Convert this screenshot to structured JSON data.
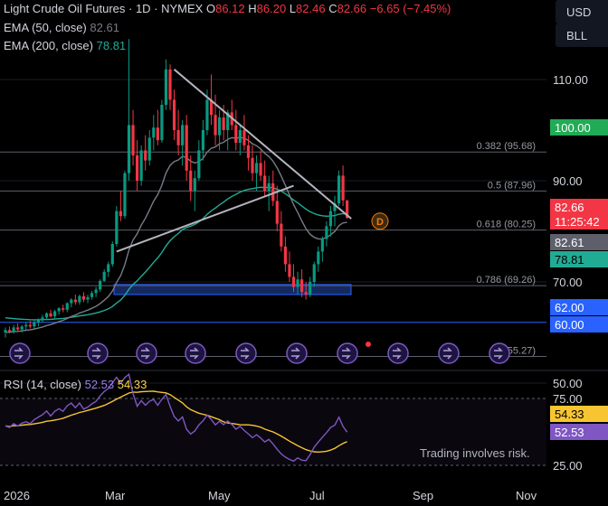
{
  "header": {
    "title": "Light Crude Oil Futures · 1D · NYMEX",
    "ohlc": [
      {
        "k": "O",
        "v": "86.12"
      },
      {
        "k": "H",
        "v": "86.20"
      },
      {
        "k": "L",
        "v": "82.46"
      },
      {
        "k": "C",
        "v": "82.66"
      }
    ],
    "change": "−6.65 (−7.45%)",
    "ema50_label": "EMA (50, close)",
    "ema50_value": "82.61",
    "ema200_label": "EMA (200, close)",
    "ema200_value": "78.81"
  },
  "side_buttons": {
    "currency": "USD",
    "unit": "BLL"
  },
  "colors": {
    "up": "#089981",
    "down": "#f23645",
    "ema50": "#787b86",
    "ema200": "#22ab94",
    "rsi": "#7e57c2",
    "rsi_ma": "#f7c531",
    "trendline": "#b2b5be",
    "box": "#1e3a8a",
    "green_label": "#22ab56",
    "red_label": "#f23645",
    "blue_label": "#2962ff"
  },
  "chart_data": {
    "type": "candlestick",
    "x_axis": {
      "labels": [
        "2026",
        "Mar",
        "May",
        "Jul",
        "Sep",
        "Nov"
      ]
    },
    "y_axis": {
      "ticks": [
        "110.00",
        "90.00",
        "70.00",
        "50.00"
      ],
      "range": [
        50,
        120
      ]
    },
    "price_labels": [
      {
        "text": "100.00",
        "value": 100.0,
        "color": "green"
      },
      {
        "text": "82.66",
        "value": 82.66,
        "color": "red",
        "subtext": "11:25:42"
      },
      {
        "text": "82.61",
        "value": 82.61,
        "color": "grey"
      },
      {
        "text": "78.81",
        "value": 78.81,
        "color": "cyan"
      },
      {
        "text": "62.00",
        "value": 62.0,
        "color": "blue"
      },
      {
        "text": "60.00",
        "value": 60.0,
        "color": "blue"
      }
    ],
    "fibonacci": [
      {
        "label": "0.382 (95.68)",
        "value": 95.68
      },
      {
        "label": "0.5 (87.96)",
        "value": 87.96
      },
      {
        "label": "0.618 (80.25)",
        "value": 80.25
      },
      {
        "label": "0.786 (69.26)",
        "value": 69.26
      },
      {
        "label": "1 (55.27)",
        "value": 55.27
      }
    ],
    "dividend_marker": "D",
    "candles": [
      [
        60.0,
        61.0,
        59.0,
        60.5
      ],
      [
        60.5,
        61.2,
        59.8,
        60.2
      ],
      [
        60.2,
        61.5,
        59.8,
        61.0
      ],
      [
        61.0,
        61.8,
        60.2,
        60.6
      ],
      [
        60.6,
        61.5,
        60.0,
        61.2
      ],
      [
        61.2,
        62.0,
        60.5,
        61.5
      ],
      [
        61.5,
        62.3,
        60.8,
        61.2
      ],
      [
        61.2,
        62.5,
        60.8,
        62.0
      ],
      [
        62.0,
        62.8,
        61.2,
        62.5
      ],
      [
        62.5,
        63.5,
        62.0,
        63.0
      ],
      [
        63.0,
        64.0,
        62.5,
        63.8
      ],
      [
        63.8,
        64.5,
        63.0,
        63.2
      ],
      [
        63.2,
        64.5,
        62.8,
        64.2
      ],
      [
        64.2,
        65.0,
        63.5,
        64.8
      ],
      [
        64.8,
        65.5,
        64.0,
        64.5
      ],
      [
        64.5,
        66.0,
        64.0,
        65.8
      ],
      [
        65.8,
        66.8,
        65.0,
        66.5
      ],
      [
        66.5,
        67.5,
        65.5,
        66.0
      ],
      [
        66.0,
        67.5,
        65.5,
        67.2
      ],
      [
        67.2,
        68.0,
        66.0,
        66.5
      ],
      [
        66.5,
        67.5,
        65.8,
        67.0
      ],
      [
        67.0,
        68.2,
        66.5,
        67.8
      ],
      [
        67.8,
        69.0,
        67.0,
        68.5
      ],
      [
        68.5,
        70.5,
        68.0,
        70.2
      ],
      [
        70.2,
        72.5,
        70.0,
        72.0
      ],
      [
        72.0,
        74.0,
        71.0,
        73.5
      ],
      [
        73.5,
        78.0,
        73.0,
        77.5
      ],
      [
        77.5,
        85.0,
        77.0,
        84.0
      ],
      [
        84.0,
        88.0,
        82.0,
        83.0
      ],
      [
        83.0,
        92.0,
        82.5,
        91.5
      ],
      [
        91.5,
        118.0,
        90.0,
        101.0
      ],
      [
        101.0,
        104.0,
        93.0,
        95.0
      ],
      [
        95.0,
        98.0,
        88.0,
        90.0
      ],
      [
        90.0,
        97.0,
        89.0,
        96.0
      ],
      [
        96.0,
        99.0,
        92.0,
        94.0
      ],
      [
        94.0,
        100.0,
        93.0,
        98.5
      ],
      [
        98.5,
        103.0,
        96.0,
        100.5
      ],
      [
        100.5,
        104.0,
        97.0,
        98.0
      ],
      [
        98.0,
        106.0,
        97.5,
        105.0
      ],
      [
        105.0,
        114.0,
        104.0,
        112.0
      ],
      [
        112.0,
        113.0,
        104.0,
        106.0
      ],
      [
        106.0,
        108.0,
        98.0,
        100.0
      ],
      [
        100.0,
        104.0,
        95.0,
        97.0
      ],
      [
        97.0,
        102.0,
        93.0,
        101.0
      ],
      [
        101.0,
        103.0,
        90.0,
        92.0
      ],
      [
        92.0,
        95.0,
        86.0,
        88.0
      ],
      [
        88.0,
        92.0,
        84.0,
        90.5
      ],
      [
        90.5,
        98.0,
        90.0,
        96.0
      ],
      [
        96.0,
        102.0,
        94.0,
        100.0
      ],
      [
        100.0,
        108.0,
        99.0,
        106.0
      ],
      [
        106.0,
        111.0,
        101.0,
        103.0
      ],
      [
        103.0,
        107.0,
        97.0,
        99.0
      ],
      [
        99.0,
        104.0,
        96.0,
        102.5
      ],
      [
        102.5,
        105.0,
        98.0,
        100.0
      ],
      [
        100.0,
        104.0,
        96.0,
        103.5
      ],
      [
        103.5,
        106.0,
        100.0,
        101.0
      ],
      [
        101.0,
        104.0,
        96.0,
        97.5
      ],
      [
        97.5,
        101.0,
        95.0,
        100.0
      ],
      [
        100.0,
        103.0,
        96.0,
        97.0
      ],
      [
        97.0,
        99.0,
        92.0,
        94.5
      ],
      [
        94.5,
        97.0,
        90.0,
        91.5
      ],
      [
        91.5,
        95.0,
        88.0,
        93.5
      ],
      [
        93.5,
        96.0,
        90.0,
        91.0
      ],
      [
        91.0,
        94.0,
        87.0,
        88.0
      ],
      [
        88.0,
        91.0,
        84.0,
        89.5
      ],
      [
        89.5,
        92.0,
        85.0,
        86.0
      ],
      [
        86.0,
        89.0,
        80.0,
        81.5
      ],
      [
        81.5,
        84.0,
        76.0,
        77.0
      ],
      [
        77.0,
        79.0,
        72.0,
        73.5
      ],
      [
        73.5,
        76.0,
        70.0,
        71.0
      ],
      [
        71.0,
        73.5,
        68.0,
        69.0
      ],
      [
        69.0,
        72.0,
        67.5,
        70.5
      ],
      [
        70.5,
        72.5,
        67.0,
        68.0
      ],
      [
        68.0,
        70.0,
        66.5,
        67.5
      ],
      [
        67.5,
        71.0,
        67.0,
        70.0
      ],
      [
        70.0,
        74.0,
        69.0,
        73.5
      ],
      [
        73.5,
        77.0,
        72.0,
        76.0
      ],
      [
        76.0,
        79.0,
        74.0,
        78.5
      ],
      [
        78.5,
        82.0,
        77.0,
        81.0
      ],
      [
        81.0,
        85.0,
        79.0,
        84.0
      ],
      [
        84.0,
        87.0,
        81.0,
        85.5
      ],
      [
        85.5,
        92.0,
        85.0,
        91.0
      ],
      [
        91.0,
        93.0,
        85.0,
        86.12
      ],
      [
        86.12,
        86.2,
        82.46,
        82.66
      ]
    ],
    "rsi": {
      "label": "RSI (14, close)",
      "value": "52.53",
      "ma_value": "54.33",
      "ticks": [
        "75.00",
        "25.00"
      ],
      "range": [
        20,
        85
      ]
    }
  },
  "footer": {
    "disclaimer": "Trading involves risk."
  }
}
